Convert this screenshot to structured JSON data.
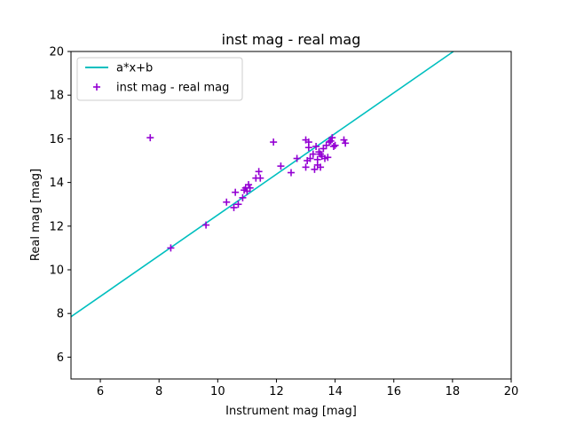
{
  "chart_data": {
    "type": "scatter",
    "title": "inst mag - real mag",
    "xlabel": "Instrument mag [mag]",
    "ylabel": "Real mag [mag]",
    "xlim": [
      5,
      20
    ],
    "ylim": [
      5,
      20
    ],
    "xticks": [
      6,
      8,
      10,
      12,
      14,
      16,
      18,
      20
    ],
    "yticks": [
      6,
      8,
      10,
      12,
      14,
      16,
      18,
      20
    ],
    "grid": false,
    "legend_position": "top-left",
    "fit_line": {
      "name": "a*x+b",
      "color": "#00bfbf",
      "x": [
        5,
        18.03
      ],
      "y": [
        7.85,
        20
      ]
    },
    "series": [
      {
        "name": "inst mag - real mag",
        "marker": "plus",
        "color": "#9400d3",
        "x": [
          7.7,
          8.4,
          9.6,
          10.3,
          10.55,
          10.6,
          10.7,
          10.85,
          10.9,
          10.95,
          11.0,
          11.05,
          11.1,
          11.3,
          11.4,
          11.45,
          11.9,
          12.15,
          12.5,
          12.7,
          13.0,
          13.0,
          13.05,
          13.1,
          13.1,
          13.15,
          13.25,
          13.3,
          13.35,
          13.4,
          13.4,
          13.45,
          13.5,
          13.5,
          13.55,
          13.6,
          13.65,
          13.7,
          13.75,
          13.8,
          13.85,
          13.9,
          13.95,
          14.0,
          14.3,
          14.35
        ],
        "y": [
          16.05,
          11.0,
          12.05,
          13.1,
          12.85,
          13.55,
          13.0,
          13.3,
          13.65,
          13.75,
          13.6,
          13.9,
          13.75,
          14.2,
          14.5,
          14.2,
          15.85,
          14.75,
          14.45,
          15.1,
          15.95,
          14.7,
          15.0,
          15.6,
          15.85,
          15.1,
          15.3,
          14.6,
          15.65,
          14.8,
          15.05,
          15.4,
          14.7,
          15.3,
          15.2,
          15.55,
          15.1,
          15.7,
          15.15,
          15.85,
          15.9,
          16.05,
          15.65,
          15.7,
          15.95,
          15.8
        ]
      }
    ]
  }
}
